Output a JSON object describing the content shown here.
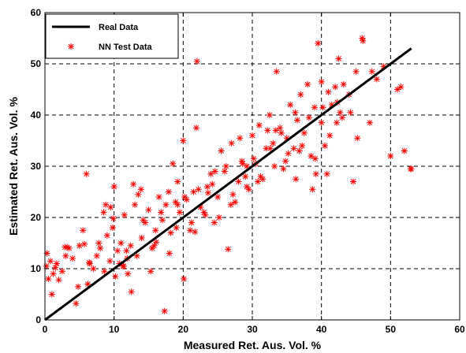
{
  "chart_data": {
    "type": "scatter",
    "xlabel": "Measured Ret. Aus. Vol. %",
    "ylabel": "Estimated Ret. Aus. Vol. %",
    "xlim": [
      0,
      60
    ],
    "ylim": [
      0,
      60
    ],
    "xticks": [
      "0",
      "10",
      "20",
      "30",
      "40",
      "50",
      "60"
    ],
    "yticks": [
      "0",
      "10",
      "20",
      "30",
      "40",
      "50",
      "60"
    ],
    "grid": true,
    "legend_position": "top-left",
    "series": [
      {
        "name": "Real Data",
        "kind": "line",
        "color": "#000000",
        "x": [
          0,
          53
        ],
        "y": [
          0,
          53
        ]
      },
      {
        "name": "NN Test Data",
        "kind": "scatter",
        "marker": "asterisk",
        "color": "#ff0000",
        "x": [
          0.2,
          0.5,
          1.0,
          1.5,
          2.0,
          0.3,
          0.8,
          1.2,
          2.5,
          3.0,
          3.5,
          4.0,
          4.5,
          5.0,
          5.5,
          6.0,
          6.5,
          7.0,
          7.5,
          8.0,
          8.5,
          9.0,
          9.5,
          10.0,
          10.5,
          11.0,
          11.5,
          12.0,
          12.5,
          13.0,
          3.2,
          4.8,
          6.2,
          7.8,
          8.8,
          9.8,
          10.8,
          11.8,
          12.8,
          13.5,
          14.0,
          14.5,
          15.0,
          15.5,
          16.0,
          16.5,
          17.0,
          17.5,
          18.0,
          18.5,
          19.0,
          19.5,
          20.0,
          20.5,
          21.0,
          21.5,
          22.0,
          22.5,
          23.0,
          23.5,
          24.0,
          24.5,
          25.0,
          25.5,
          26.0,
          26.5,
          27.0,
          27.5,
          28.0,
          28.5,
          29.0,
          29.5,
          30.0,
          30.5,
          31.0,
          31.5,
          32.0,
          32.5,
          33.0,
          33.5,
          34.0,
          34.5,
          35.0,
          35.5,
          36.0,
          36.5,
          37.0,
          37.5,
          38.0,
          38.5,
          39.0,
          39.5,
          40.0,
          40.5,
          41.0,
          41.5,
          42.0,
          42.5,
          43.0,
          44.0,
          45.0,
          46.0,
          47.0,
          48.0,
          49.0,
          50.0,
          51.0,
          52.0,
          53.0,
          14.2,
          15.8,
          16.8,
          18.2,
          19.2,
          20.2,
          21.2,
          22.2,
          23.2,
          24.2,
          25.2,
          26.2,
          27.2,
          28.2,
          29.2,
          30.2,
          31.2,
          32.2,
          33.2,
          34.2,
          35.2,
          36.2,
          37.2,
          38.2,
          39.2,
          40.2,
          41.2,
          42.2,
          43.2,
          44.2,
          45.2,
          11.3,
          11.9,
          10.2,
          12.4,
          9.4,
          13.3,
          8.6,
          17.3,
          21.9,
          33.4,
          39.1,
          45.9,
          47.3,
          51.5,
          52.9,
          40.0,
          42.7,
          19.2,
          20.1,
          17.9,
          24.6,
          29.2,
          36.3,
          1.7,
          2.9,
          5.7,
          6.4,
          9.9,
          11.4,
          13.9,
          15.3,
          16.1,
          18.9,
          21.7,
          23.6,
          26.9,
          28.6,
          30.8,
          32.6,
          34.8,
          36.8,
          38.7,
          40.8,
          42.3,
          44.6
        ],
        "y": [
          10.5,
          8.0,
          5.0,
          10.2,
          7.8,
          13.0,
          11.5,
          9.0,
          9.5,
          12.5,
          14.0,
          12.0,
          3.2,
          14.5,
          17.5,
          28.5,
          11.0,
          10.0,
          12.5,
          14.0,
          21.0,
          16.5,
          22.0,
          26.0,
          13.5,
          15.0,
          20.5,
          9.0,
          5.5,
          22.5,
          14.2,
          6.5,
          7.0,
          15.0,
          22.5,
          18.0,
          11.0,
          13.5,
          26.5,
          24.5,
          16.0,
          19.0,
          21.5,
          14.0,
          17.5,
          24.0,
          19.5,
          22.5,
          13.0,
          30.5,
          18.0,
          21.0,
          35.0,
          23.5,
          17.5,
          25.0,
          50.5,
          22.0,
          21.0,
          26.0,
          28.5,
          19.0,
          24.0,
          33.0,
          29.0,
          13.8,
          34.5,
          23.0,
          27.0,
          31.0,
          28.0,
          25.5,
          36.0,
          30.5,
          38.0,
          27.5,
          33.5,
          40.0,
          34.5,
          48.5,
          37.5,
          29.5,
          35.5,
          42.0,
          33.5,
          39.0,
          44.0,
          36.5,
          46.0,
          32.0,
          41.5,
          54.0,
          38.5,
          34.0,
          44.5,
          42.0,
          45.5,
          51.0,
          39.5,
          44.0,
          48.5,
          54.5,
          38.5,
          47.0,
          49.5,
          32.0,
          45.0,
          33.0,
          29.5,
          19.5,
          14.5,
          21.0,
          17.0,
          22.5,
          24.0,
          19.0,
          25.5,
          20.5,
          26.5,
          20.0,
          30.0,
          24.5,
          35.5,
          26.0,
          31.5,
          28.0,
          37.0,
          30.0,
          36.5,
          32.5,
          40.5,
          34.0,
          39.5,
          28.5,
          41.5,
          36.0,
          38.5,
          46.0,
          40.5,
          35.5,
          10.5,
          12.0,
          8.5,
          14.5,
          11.5,
          12.5,
          9.5,
          1.7,
          37.5,
          37.0,
          31.5,
          55.0,
          48.5,
          45.5,
          29.5,
          46.5,
          40.5,
          27.0,
          8.0,
          25.0,
          29.0,
          30.0,
          27.5,
          11.0,
          14.2,
          14.8,
          11.2,
          19.8,
          10.5,
          25.5,
          9.5,
          15.2,
          23.0,
          17.2,
          24.8,
          22.5,
          30.5,
          27.0,
          33.5,
          31.0,
          33.0,
          25.5,
          28.5,
          42.5,
          27.0
        ]
      }
    ]
  }
}
